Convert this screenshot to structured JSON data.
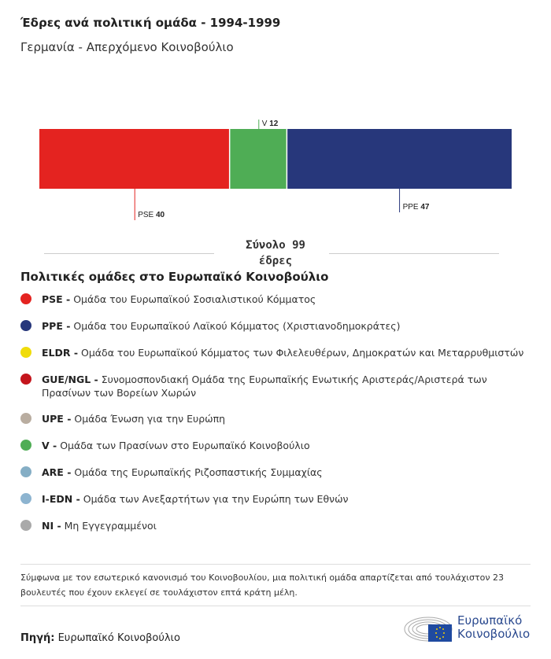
{
  "title": "Έδρες ανά πολιτική ομάδα - 1994-1999",
  "subtitle": "Γερμανία - Απερχόμενο Κοινοβούλιο",
  "chart_data": {
    "type": "bar",
    "orientation": "stacked-horizontal",
    "categories": [
      "PSE",
      "V",
      "PPE"
    ],
    "values": [
      40,
      12,
      47
    ],
    "colors": [
      "#e42320",
      "#4fad55",
      "#27377b"
    ],
    "total": 99
  },
  "total": {
    "line1": "Σύνολο  99",
    "line2": "έδρες"
  },
  "legend": {
    "title": "Πολιτικές ομάδες στο Ευρωπαϊκό Κοινοβούλιο",
    "items": [
      {
        "code": "PSE -",
        "desc": " Ομάδα του Ευρωπαϊκού Σοσιαλιστικού Κόμματος",
        "color": "#e42320"
      },
      {
        "code": "PPE -",
        "desc": " Ομάδα του Ευρωπαϊκού Λαϊκού Κόμματος (Χριστιανοδημοκράτες)",
        "color": "#27377b"
      },
      {
        "code": "ELDR -",
        "desc": " Ομάδα του Ευρωπαϊκού Κόμματος των Φιλελευθέρων, Δημοκρατών και Μεταρρυθμιστών",
        "color": "#f0dc0a"
      },
      {
        "code": "GUE/NGL -",
        "desc": " Συνομοσπονδιακή Ομάδα της Ευρωπαϊκής Ενωτικής Αριστεράς/Αριστερά των Πρασίνων των Βορείων Χωρών",
        "color": "#c4151c"
      },
      {
        "code": "UPE -",
        "desc": " Ομάδα Ένωση για την Ευρώπη",
        "color": "#b9ada0"
      },
      {
        "code": "V -",
        "desc": " Ομάδα των Πρασίνων στο Ευρωπαϊκό Κοινοβούλιο",
        "color": "#4fad55"
      },
      {
        "code": "ARE -",
        "desc": " Ομάδα της Ευρωπαϊκής Ριζοσπαστικής Συμμαχίας",
        "color": "#85aec5"
      },
      {
        "code": "I-EDN -",
        "desc": " Ομάδα των Ανεξαρτήτων για την Ευρώπη των Εθνών",
        "color": "#8db4d0"
      },
      {
        "code": "NI -",
        "desc": " Μη Εγγεγραμμένοι",
        "color": "#a9a9a9"
      }
    ]
  },
  "note": "Σύμφωνα με τον εσωτερικό κανονισμό του Κοινοβουλίου, μια πολιτική ομάδα απαρτίζεται από τουλάχιστον 23 βουλευτές που έχουν εκλεγεί σε τουλάχιστον επτά κράτη μέλη.",
  "source": {
    "label": "Πηγή:",
    "value": " Ευρωπαϊκό Κοινοβούλιο"
  },
  "logo": {
    "line1": "Ευρωπαϊκό",
    "line2": "Κοινοβούλιο"
  }
}
